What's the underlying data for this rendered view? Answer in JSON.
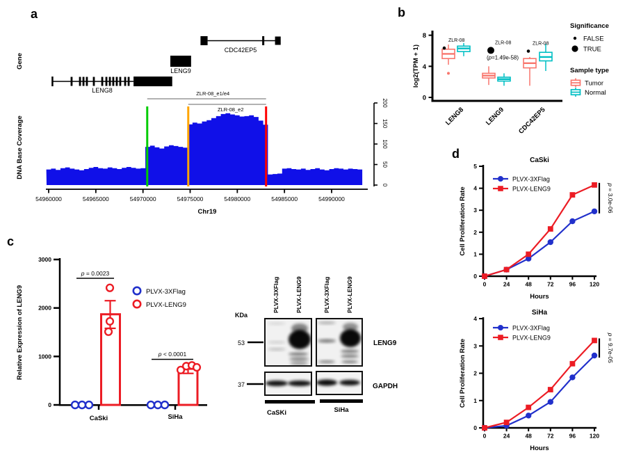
{
  "figure": {
    "panels": {
      "a": "a",
      "b": "b",
      "c": "c",
      "d": "d"
    }
  },
  "blot": {
    "kda_label": "KDa",
    "marker_53": "53",
    "marker_37": "37",
    "lane_labels": [
      "PLVX-3XFlag",
      "PLVX-LENG9",
      "PLVX-3XFlag",
      "PLVX-LENG9"
    ],
    "antibody_leng9": "LENG9",
    "antibody_gapdh": "GAPDH",
    "cell_caski": "CaSKi",
    "cell_siha": "SiHa",
    "bands": {
      "box1": [
        [
          398,
          465,
          13,
          2,
          0.1
        ],
        [
          398,
          492,
          13,
          1.8,
          0.15
        ],
        [
          398,
          502,
          13,
          2,
          0.2
        ],
        [
          431,
          488,
          16,
          14,
          0.96
        ],
        [
          431,
          472,
          12,
          7,
          0.45
        ],
        [
          429,
          509,
          14,
          2.5,
          0.5
        ],
        [
          430,
          516,
          14,
          2,
          0.55
        ],
        [
          430,
          522,
          13,
          2,
          0.45
        ]
      ],
      "box2": [
        [
          470,
          464,
          13,
          2,
          0.28
        ],
        [
          470,
          490,
          13,
          2.5,
          0.5
        ],
        [
          470,
          520,
          12,
          2,
          0.45
        ],
        [
          504,
          486,
          15,
          13,
          0.96
        ],
        [
          504,
          470,
          11,
          6,
          0.4
        ],
        [
          503,
          505,
          13,
          2.5,
          0.5
        ],
        [
          503,
          512,
          13,
          2,
          0.55
        ],
        [
          503,
          520,
          12,
          2,
          0.5
        ]
      ],
      "g1": [
        [
          398,
          551,
          16,
          4,
          0.93
        ],
        [
          431,
          551,
          17,
          4,
          0.93
        ]
      ],
      "g2": [
        [
          470,
          550,
          15,
          4.5,
          0.95
        ],
        [
          503,
          550,
          15,
          4,
          0.93
        ]
      ]
    }
  },
  "chart_data": [
    {
      "id": "genome_coverage_track",
      "type": "area",
      "xlabel": "Chr19",
      "ylabel": "DNA Base Coverage",
      "gene_row_label": "Gene",
      "xlim": [
        54959700,
        54993800
      ],
      "ylim": [
        0,
        200
      ],
      "y_ticks": [
        0,
        50,
        100,
        150,
        200
      ],
      "x_ticks": [
        54960000,
        54965000,
        54970000,
        54975000,
        54980000,
        54985000,
        54990000
      ],
      "coverage_color": "#1010e8",
      "genes": [
        {
          "name": "LENG8",
          "line": [
            54960400,
            54969000
          ],
          "box": [
            54969000,
            54973100
          ],
          "exons": [
            54962430,
            54963320,
            54963690,
            54964050,
            54964790,
            54965680,
            54966120,
            54966490,
            54966850,
            54967220,
            54967590,
            54968110,
            54968480
          ]
        },
        {
          "name": "LENG9",
          "box": [
            54972900,
            54975100
          ]
        },
        {
          "name": "CDC42EP5",
          "box": [
            54976100,
            54976850
          ],
          "line": [
            54976850,
            54984250
          ],
          "exons": [
            54982750
          ],
          "end_box": [
            54984000,
            54984600
          ]
        }
      ],
      "markers": [
        {
          "color": "#00cc00",
          "pos": 54970450
        },
        {
          "color": "#ffa500",
          "pos": 54974800
        },
        {
          "color": "#ff0000",
          "pos": 54983050
        }
      ],
      "brackets": [
        {
          "label": "ZLR-08_e1/e4",
          "from": 54970450,
          "to": 54983050
        },
        {
          "label": "ZLR-08_e2",
          "from": 54974800,
          "to": 54983050
        }
      ],
      "coverage": {
        "start": 54960000,
        "step": 500,
        "values": [
          38,
          40,
          37,
          41,
          43,
          40,
          38,
          36,
          39,
          42,
          44,
          41,
          40,
          43,
          41,
          39,
          42,
          44,
          42,
          40,
          41,
          93,
          96,
          92,
          89,
          94,
          97,
          95,
          93,
          91,
          148,
          152,
          150,
          155,
          158,
          163,
          168,
          173,
          175,
          172,
          170,
          167,
          168,
          170,
          166,
          157,
          147,
          26,
          27,
          28,
          40,
          41,
          39,
          38,
          40,
          37,
          39,
          41,
          38,
          36,
          39,
          41,
          40,
          38,
          40,
          39,
          38
        ]
      }
    },
    {
      "id": "expression_boxplot",
      "type": "boxplot",
      "ylabel": "log2(TPM + 1)",
      "ylim": [
        0,
        9
      ],
      "y_ticks": [
        0,
        4,
        8
      ],
      "categories": [
        "LENG8",
        "LENG9",
        "CDC42EP5"
      ],
      "colors": {
        "tumor": "#F8766D",
        "normal": "#00BFC4"
      },
      "groups": [
        {
          "gene": "LENG8",
          "tumor": {
            "low": 4.2,
            "q1": 5.0,
            "median": 5.6,
            "q3": 6.2,
            "high": 6.8,
            "outliers": [
              3.1
            ]
          },
          "normal": {
            "low": 5.3,
            "q1": 5.9,
            "median": 6.3,
            "q3": 6.6,
            "high": 7.0,
            "outliers": []
          },
          "sig": {
            "label": "ZLR-08",
            "significant": false,
            "value": 6.35
          }
        },
        {
          "gene": "LENG9",
          "tumor": {
            "low": 1.6,
            "q1": 2.5,
            "median": 2.8,
            "q3": 3.1,
            "high": 4.0,
            "outliers": []
          },
          "normal": {
            "low": 1.5,
            "q1": 2.1,
            "median": 2.35,
            "q3": 2.6,
            "high": 3.1,
            "outliers": []
          },
          "sig": {
            "label": "ZLR-08",
            "significant": true,
            "value": 6.05,
            "p_label": "(p=1.49e-58)"
          }
        },
        {
          "gene": "CDC42EP5",
          "tumor": {
            "low": 1.5,
            "q1": 3.8,
            "median": 4.4,
            "q3": 5.0,
            "high": 5.2,
            "outliers": []
          },
          "normal": {
            "low": 3.4,
            "q1": 4.7,
            "median": 5.2,
            "q3": 5.8,
            "high": 6.9,
            "outliers": []
          },
          "sig": {
            "label": "ZLR-08",
            "significant": false,
            "value": 5.95
          }
        }
      ],
      "legend": {
        "significance_title": "Significance",
        "sig_items": [
          {
            "label": "FALSE",
            "size": "small"
          },
          {
            "label": "TRUE",
            "size": "large"
          }
        ],
        "sample_title": "Sample type",
        "sample_items": [
          {
            "label": "Tumor",
            "color": "#F8766D"
          },
          {
            "label": "Normal",
            "color": "#00BFC4"
          }
        ]
      }
    },
    {
      "id": "leng9_expression_bars",
      "type": "bar",
      "ylabel": "Relative Expression of LENG9",
      "ylim": [
        0,
        3000
      ],
      "y_ticks": [
        0,
        1000,
        2000,
        3000
      ],
      "categories": [
        "CaSki",
        "SiHa"
      ],
      "series": [
        {
          "name": "PLVX-3XFlag",
          "color": "#2130cb",
          "marker": "open-circle",
          "points": [
            [
              0,
              0,
              0
            ],
            [
              0,
              0,
              0
            ]
          ]
        },
        {
          "name": "PLVX-LENG9",
          "color": "#ec1c24",
          "marker": "open-circle",
          "mean": [
            1870,
            745
          ],
          "err_high": [
            2150,
            830
          ],
          "err_low": [
            1580,
            650
          ],
          "points": [
            [
              2415,
              1725,
              1510
            ],
            [
              720,
              800,
              815,
              775
            ]
          ]
        }
      ],
      "annotations": [
        {
          "category": "CaSki",
          "label": "p = 0.0023"
        },
        {
          "category": "SiHa",
          "label": "p < 0.0001"
        }
      ]
    },
    {
      "id": "caski_proliferation",
      "type": "line",
      "title": "CaSki",
      "xlabel": "Hours",
      "ylabel": "Cell Proliferation Rate",
      "x": [
        0,
        24,
        48,
        72,
        96,
        120
      ],
      "ylim": [
        0,
        5
      ],
      "y_ticks": [
        0,
        1,
        2,
        3,
        4,
        5
      ],
      "series": [
        {
          "name": "PLVX-3XFlag",
          "color": "#2130cb",
          "marker": "circle",
          "values": [
            0,
            0.3,
            0.8,
            1.55,
            2.5,
            2.95
          ]
        },
        {
          "name": "PLVX-LENG9",
          "color": "#ec1c24",
          "marker": "square",
          "values": [
            0,
            0.3,
            1.0,
            2.15,
            3.7,
            4.15
          ]
        }
      ],
      "p_label": "p = 3.0e-06"
    },
    {
      "id": "siha_proliferation",
      "type": "line",
      "title": "SiHa",
      "xlabel": "Hours",
      "ylabel": "Cell Proliferation Rate",
      "x": [
        0,
        24,
        48,
        72,
        96,
        120
      ],
      "ylim": [
        0,
        4
      ],
      "y_ticks": [
        0,
        1,
        2,
        3,
        4
      ],
      "series": [
        {
          "name": "PLVX-3XFlag",
          "color": "#2130cb",
          "marker": "circle",
          "values": [
            0,
            0.08,
            0.45,
            0.95,
            1.85,
            2.65
          ]
        },
        {
          "name": "PLVX-LENG9",
          "color": "#ec1c24",
          "marker": "square",
          "values": [
            0,
            0.2,
            0.75,
            1.4,
            2.35,
            3.2
          ]
        }
      ],
      "p_label": "p = 9.7e-05"
    }
  ]
}
